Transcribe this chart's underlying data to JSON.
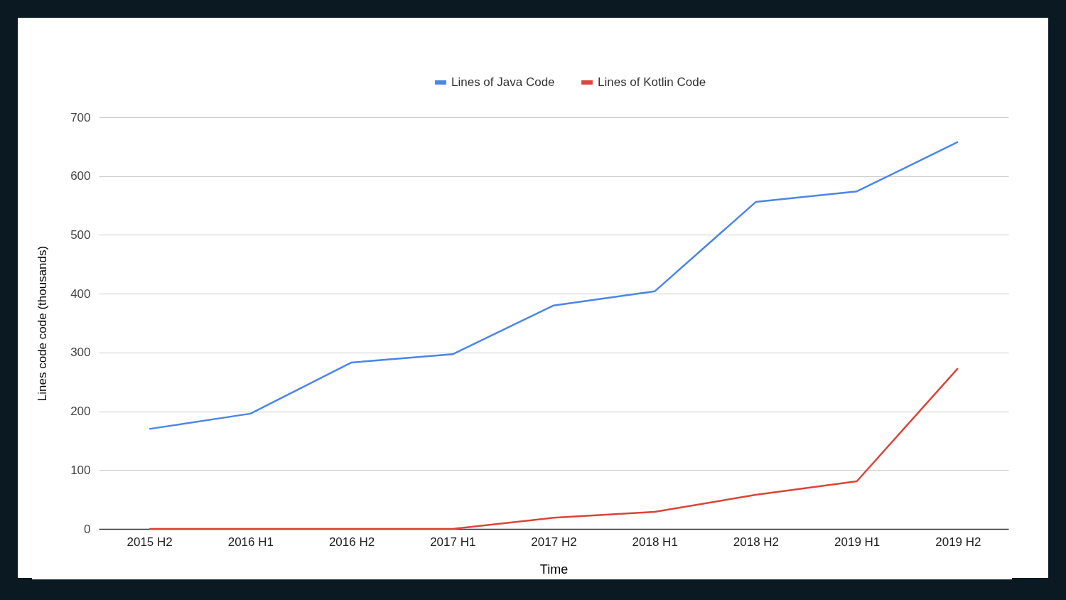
{
  "chart_data": {
    "type": "line",
    "xlabel": "Time",
    "ylabel": "Lines code code (thousands)",
    "categories": [
      "2015 H2",
      "2016 H1",
      "2016 H2",
      "2017 H1",
      "2017 H2",
      "2018 H1",
      "2018 H2",
      "2019 H1",
      "2019 H2"
    ],
    "series": [
      {
        "name": "Lines of Java Code",
        "color": "#4a86e8",
        "values": [
          170,
          196,
          283,
          297,
          380,
          404,
          556,
          574,
          658
        ]
      },
      {
        "name": "Lines of Kotlin Code",
        "color": "#db4437",
        "values": [
          0,
          0,
          0,
          0,
          19,
          29,
          58,
          81,
          273
        ]
      }
    ],
    "ylim": [
      0,
      700
    ],
    "yticks": [
      0,
      100,
      200,
      300,
      400,
      500,
      600,
      700
    ],
    "grid": "y",
    "legend": "top",
    "marker": "none",
    "line_style": "solid"
  }
}
